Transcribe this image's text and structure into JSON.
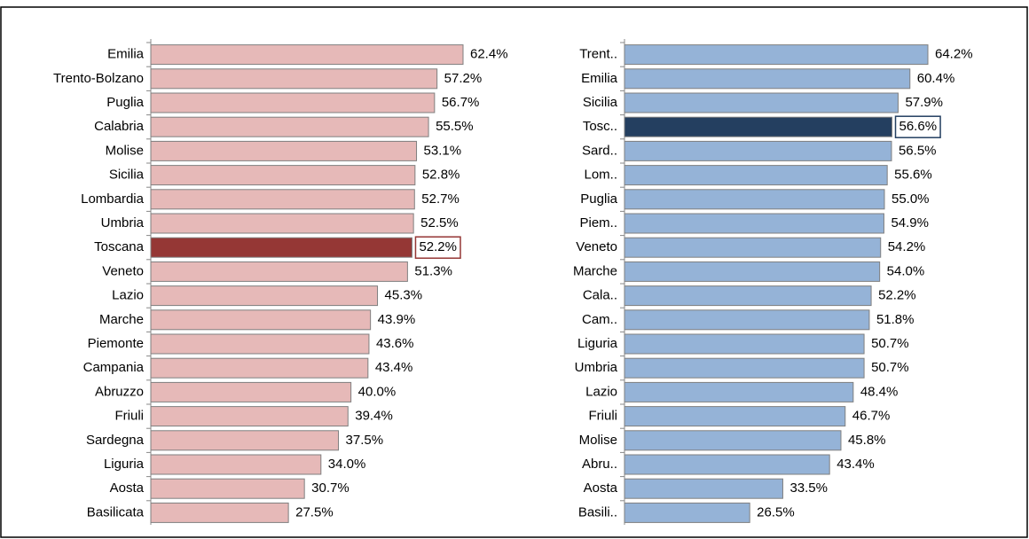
{
  "chart_data": [
    {
      "type": "bar",
      "orientation": "horizontal",
      "color": "#e6b9b8",
      "highlight": "Toscana",
      "highlight_color": "#953735",
      "categories": [
        "Emilia",
        "Trento-Bolzano",
        "Puglia",
        "Calabria",
        "Molise",
        "Sicilia",
        "Lombardia",
        "Umbria",
        "Toscana",
        "Veneto",
        "Lazio",
        "Marche",
        "Piemonte",
        "Campania",
        "Abruzzo",
        "Friuli",
        "Sardegna",
        "Liguria",
        "Aosta",
        "Basilicata"
      ],
      "values": [
        62.4,
        57.2,
        56.7,
        55.5,
        53.1,
        52.8,
        52.7,
        52.5,
        52.2,
        51.3,
        45.3,
        43.9,
        43.6,
        43.4,
        40.0,
        39.4,
        37.5,
        34.0,
        30.7,
        27.5
      ],
      "value_labels": [
        "62.4%",
        "57.2%",
        "56.7%",
        "55.5%",
        "53.1%",
        "52.8%",
        "52.7%",
        "52.5%",
        "52.2%",
        "51.3%",
        "45.3%",
        "43.9%",
        "43.6%",
        "43.4%",
        "40.0%",
        "39.4%",
        "37.5%",
        "34.0%",
        "30.7%",
        "27.5%"
      ]
    },
    {
      "type": "bar",
      "orientation": "horizontal",
      "color": "#95b3d7",
      "highlight": "Tosc..",
      "highlight_color": "#243f60",
      "categories": [
        "Trent..",
        "Emilia",
        "Sicilia",
        "Tosc..",
        "Sard..",
        "Lom..",
        "Puglia",
        "Piem..",
        "Veneto",
        "Marche",
        "Cala..",
        "Cam..",
        "Liguria",
        "Umbria",
        "Lazio",
        "Friuli",
        "Molise",
        "Abru..",
        "Aosta",
        "Basili.."
      ],
      "values": [
        64.2,
        60.4,
        57.9,
        56.6,
        56.5,
        55.6,
        55.0,
        54.9,
        54.2,
        54.0,
        52.2,
        51.8,
        50.7,
        50.7,
        48.4,
        46.7,
        45.8,
        43.4,
        33.5,
        26.5
      ],
      "value_labels": [
        "64.2%",
        "60.4%",
        "57.9%",
        "56.6%",
        "56.5%",
        "55.6%",
        "55.0%",
        "54.9%",
        "54.2%",
        "54.0%",
        "52.2%",
        "51.8%",
        "50.7%",
        "50.7%",
        "48.4%",
        "46.7%",
        "45.8%",
        "43.4%",
        "33.5%",
        "26.5%"
      ]
    }
  ]
}
